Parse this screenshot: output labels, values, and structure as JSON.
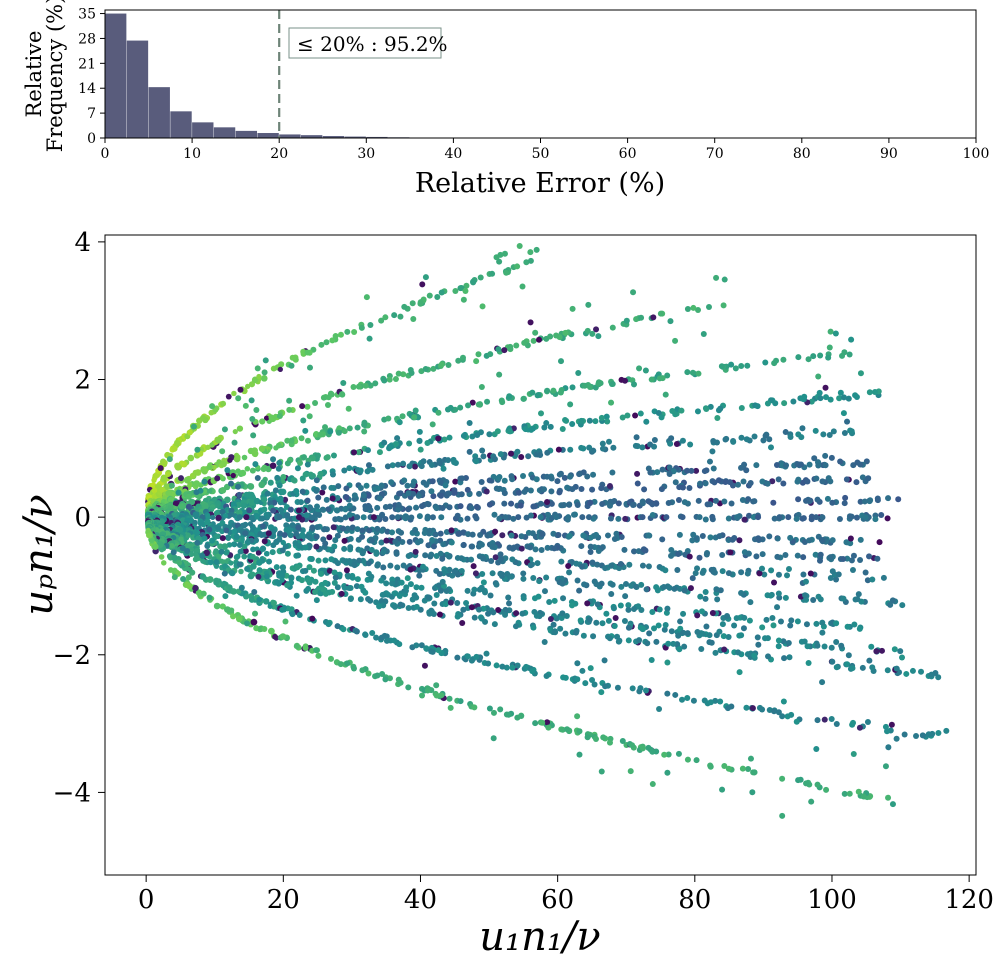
{
  "chart_data": [
    {
      "type": "bar",
      "subtype": "histogram",
      "xlabel": "Relative Error (%)",
      "ylabel_lines": [
        "Relative",
        "Frequency (%)"
      ],
      "xlim": [
        0,
        100
      ],
      "ylim": [
        0,
        36
      ],
      "xticks": [
        0,
        10,
        20,
        30,
        40,
        50,
        60,
        70,
        80,
        90,
        100
      ],
      "yticks": [
        0,
        7,
        14,
        21,
        28,
        35
      ],
      "bin_width": 2.5,
      "bin_starts": [
        0,
        2.5,
        5,
        7.5,
        10,
        12.5,
        15,
        17.5,
        20,
        22.5,
        25,
        27.5,
        30,
        32.5,
        35,
        37.5
      ],
      "values": [
        35.0,
        27.4,
        14.3,
        7.5,
        4.4,
        3.0,
        2.0,
        1.4,
        1.0,
        0.8,
        0.55,
        0.4,
        0.3,
        0.2,
        0.12,
        0.07
      ],
      "bar_color": "#595c7c",
      "threshold": {
        "x": 20,
        "color": "#6e8478",
        "label": "≤ 20% : 95.2%"
      }
    },
    {
      "type": "scatter",
      "xlabel": "u₁n₁/ν",
      "ylabel": "uₚn₁/ν",
      "xlim": [
        -6,
        121
      ],
      "ylim": [
        -5.2,
        4.1
      ],
      "xticks": [
        0,
        20,
        40,
        60,
        80,
        100,
        120
      ],
      "yticks": [
        -4,
        -2,
        0,
        2,
        4
      ],
      "ytick_labels": [
        "−4",
        "−2",
        "0",
        "2",
        "4"
      ],
      "colormap": "viridis",
      "colors": [
        "#440154",
        "#3b528b",
        "#21918c",
        "#5ec962",
        "#bddf26"
      ],
      "fan_rays": [
        {
          "yend": 3.7,
          "xend": 56,
          "color_level": 0.62
        },
        {
          "yend": 3.1,
          "xend": 84,
          "color_level": 0.62
        },
        {
          "yend": 2.4,
          "xend": 103,
          "color_level": 0.58
        },
        {
          "yend": 1.8,
          "xend": 107,
          "color_level": 0.5
        },
        {
          "yend": 1.25,
          "xend": 104,
          "color_level": 0.42
        },
        {
          "yend": 0.8,
          "xend": 105,
          "color_level": 0.35
        },
        {
          "yend": 0.55,
          "xend": 107,
          "color_level": 0.33
        },
        {
          "yend": 0.25,
          "xend": 108,
          "color_level": 0.33
        },
        {
          "yend": 0.0,
          "xend": 108,
          "color_level": 0.35
        },
        {
          "yend": -0.35,
          "xend": 108,
          "color_level": 0.36
        },
        {
          "yend": -0.6,
          "xend": 107,
          "color_level": 0.36
        },
        {
          "yend": -0.9,
          "xend": 108,
          "color_level": 0.4
        },
        {
          "yend": -1.25,
          "xend": 110,
          "color_level": 0.42
        },
        {
          "yend": -1.6,
          "xend": 105,
          "color_level": 0.45
        },
        {
          "yend": -1.95,
          "xend": 108,
          "color_level": 0.45
        },
        {
          "yend": -2.3,
          "xend": 116,
          "color_level": 0.45
        },
        {
          "yend": -3.2,
          "xend": 116,
          "color_level": 0.45
        },
        {
          "yend": -4.1,
          "xend": 108,
          "color_level": 0.62
        }
      ],
      "marker_color_dark_fraction": 0.06
    }
  ]
}
